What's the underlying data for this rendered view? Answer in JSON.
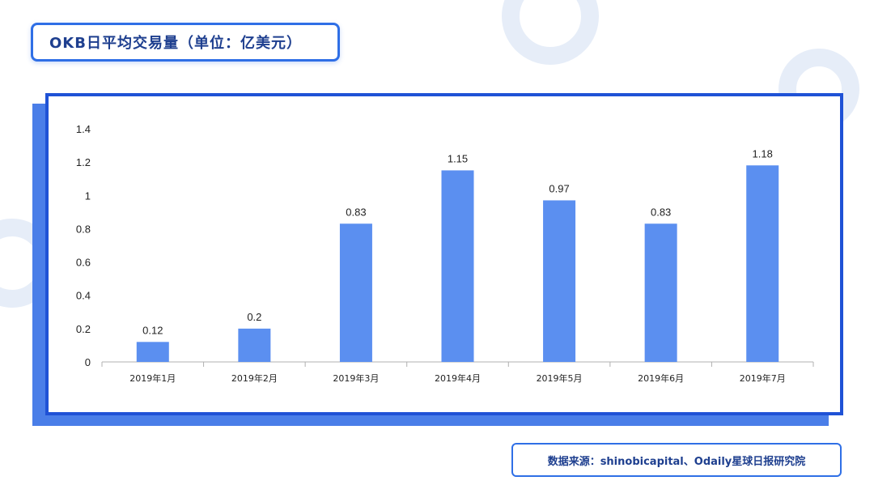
{
  "title": "OKB日平均交易量（单位：亿美元）",
  "source": "数据来源：shinobicapital、Odaily星球日报研究院",
  "colors": {
    "bar": "#5b8ff0",
    "accent": "#1f52d6",
    "shadow": "#4a7ee8"
  },
  "chart_data": {
    "type": "bar",
    "categories": [
      "2019年1月",
      "2019年2月",
      "2019年3月",
      "2019年4月",
      "2019年5月",
      "2019年6月",
      "2019年7月"
    ],
    "values": [
      0.12,
      0.2,
      0.83,
      1.15,
      0.97,
      0.83,
      1.18
    ],
    "data_labels": [
      "0.12",
      "0.2",
      "0.83",
      "1.15",
      "0.97",
      "0.83",
      "1.18"
    ],
    "yticks": [
      "0",
      "0.2",
      "0.4",
      "0.6",
      "0.8",
      "1",
      "1.2",
      "1.4"
    ],
    "ylim": [
      0,
      1.4
    ],
    "grid": false
  }
}
